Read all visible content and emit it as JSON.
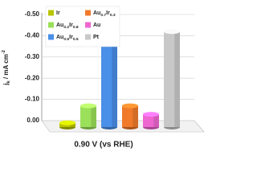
{
  "chart_data": {
    "type": "bar3d",
    "ylabel": "jk / mA cm-2",
    "xlabel": "0.90 V (vs RHE)",
    "ylim": [
      0,
      -0.5
    ],
    "yticks": [
      {
        "value": 0,
        "label": "0.00"
      },
      {
        "value": -0.1,
        "label": "-0.10"
      },
      {
        "value": -0.2,
        "label": "-0.20"
      },
      {
        "value": -0.3,
        "label": "-0.30"
      },
      {
        "value": -0.4,
        "label": "-0.40"
      },
      {
        "value": -0.5,
        "label": "-0.50"
      }
    ],
    "grid": true,
    "series": [
      {
        "name": "Ir",
        "color": "#b8c400",
        "values": [
          -0.02
        ]
      },
      {
        "name": "Au0.2Ir0.8",
        "color": "#9be05a",
        "values": [
          -0.1
        ]
      },
      {
        "name": "Au0.5Ir0.5",
        "color": "#4a8fe8",
        "values": [
          -0.39
        ]
      },
      {
        "name": "Au0.7Ir0.3",
        "color": "#f07a2a",
        "values": [
          -0.1
        ]
      },
      {
        "name": "Au",
        "color": "#ee66d0",
        "values": [
          -0.06
        ]
      },
      {
        "name": "Pt",
        "color": "#c8c8c8",
        "values": [
          -0.45
        ]
      }
    ]
  }
}
